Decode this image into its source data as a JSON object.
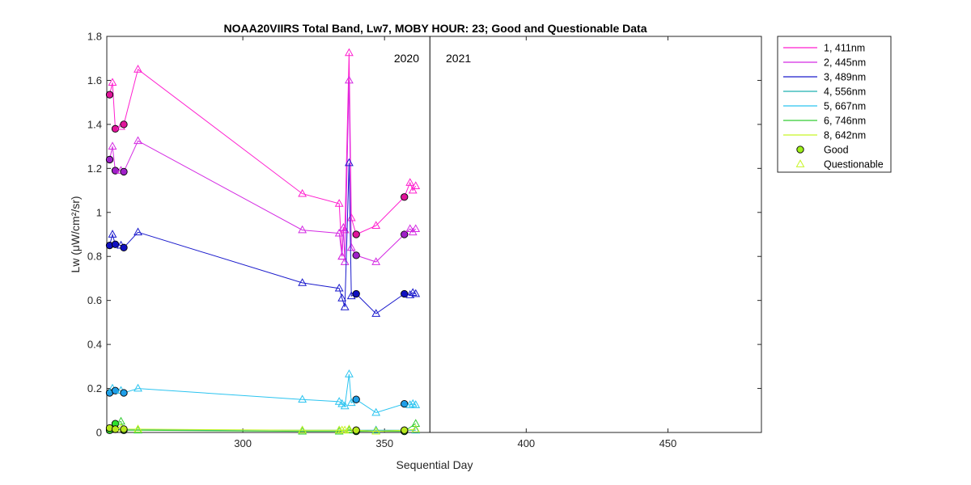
{
  "chart_data": {
    "type": "line",
    "title": "NOAA20VIIRS Total Band,  Lw7, MOBY HOUR: 23;  Good and Questionable Data",
    "xlabel": "Sequential Day",
    "ylabel": "Lw (μW/cm²/sr)",
    "xlim": [
      252,
      483
    ],
    "ylim": [
      0,
      1.8
    ],
    "xticks": [
      300,
      350,
      400,
      450
    ],
    "yticks": [
      0,
      0.2,
      0.4,
      0.6,
      0.8,
      1.0,
      1.2,
      1.4,
      1.6,
      1.8
    ],
    "ytick_labels": [
      "0",
      "0.2",
      "0.4",
      "0.6",
      "0.8",
      "1",
      "1.2",
      "1.4",
      "1.6",
      "1.8"
    ],
    "grid": false,
    "legend_position": "outside-right",
    "year_divider": 366,
    "year_labels": [
      "2020",
      "2021"
    ],
    "legend_markers": [
      {
        "label": "Good",
        "marker": "circle",
        "color": "#9ef01a"
      },
      {
        "label": "Questionable",
        "marker": "triangle",
        "color": "#c8f526"
      }
    ],
    "series": [
      {
        "name": "1, 411nm",
        "color": "#ff1fcf",
        "marker_color": "#e0149a",
        "points": [
          [
            253,
            1.535,
            "g"
          ],
          [
            254,
            1.59,
            "q"
          ],
          [
            255,
            1.38,
            "g"
          ],
          [
            257,
            1.39,
            "q"
          ],
          [
            258,
            1.4,
            "g"
          ],
          [
            263,
            1.65,
            "q"
          ],
          [
            321,
            1.085,
            "q"
          ],
          [
            334,
            1.04,
            "q"
          ],
          [
            335,
            0.8,
            "q"
          ],
          [
            335.5,
            0.93,
            "q"
          ],
          [
            336,
            0.92,
            "q"
          ],
          [
            337.5,
            1.725,
            "q"
          ],
          [
            338.3,
            0.975,
            "q"
          ],
          [
            340,
            0.9,
            "g"
          ],
          [
            347,
            0.94,
            "q"
          ],
          [
            357,
            1.07,
            "g"
          ],
          [
            359,
            1.135,
            "q"
          ],
          [
            360,
            1.1,
            "q"
          ],
          [
            361,
            1.12,
            "q"
          ]
        ]
      },
      {
        "name": "2, 445nm",
        "color": "#d42be3",
        "marker_color": "#a020c8",
        "points": [
          [
            253,
            1.24,
            "g"
          ],
          [
            254,
            1.3,
            "q"
          ],
          [
            255,
            1.19,
            "g"
          ],
          [
            257,
            1.19,
            "q"
          ],
          [
            258,
            1.185,
            "g"
          ],
          [
            263,
            1.325,
            "q"
          ],
          [
            321,
            0.92,
            "q"
          ],
          [
            334,
            0.905,
            "q"
          ],
          [
            335,
            0.8,
            "q"
          ],
          [
            335.5,
            0.93,
            "q"
          ],
          [
            336,
            0.775,
            "q"
          ],
          [
            337.5,
            1.6,
            "q"
          ],
          [
            338.3,
            0.84,
            "q"
          ],
          [
            340,
            0.805,
            "g"
          ],
          [
            347,
            0.775,
            "q"
          ],
          [
            357,
            0.9,
            "g"
          ],
          [
            359,
            0.925,
            "q"
          ],
          [
            360,
            0.91,
            "q"
          ],
          [
            361,
            0.925,
            "q"
          ]
        ]
      },
      {
        "name": "3, 489nm",
        "color": "#1a1acc",
        "marker_color": "#1010c0",
        "points": [
          [
            253,
            0.85,
            "g"
          ],
          [
            254,
            0.9,
            "q"
          ],
          [
            255,
            0.855,
            "g"
          ],
          [
            257,
            0.85,
            "q"
          ],
          [
            258,
            0.84,
            "g"
          ],
          [
            263,
            0.91,
            "q"
          ],
          [
            321,
            0.68,
            "q"
          ],
          [
            334,
            0.655,
            "q"
          ],
          [
            335,
            0.61,
            "q"
          ],
          [
            336,
            0.57,
            "q"
          ],
          [
            337.5,
            1.225,
            "q"
          ],
          [
            338.3,
            0.62,
            "q"
          ],
          [
            340,
            0.63,
            "g"
          ],
          [
            347,
            0.54,
            "q"
          ],
          [
            357,
            0.63,
            "g"
          ],
          [
            359,
            0.625,
            "q"
          ],
          [
            360,
            0.635,
            "q"
          ],
          [
            361,
            0.63,
            "q"
          ]
        ]
      },
      {
        "name": "4, 556nm",
        "color": "#1fb0b0",
        "marker_color": "#1aa0a0",
        "points": [
          [
            253,
            0.015,
            "g"
          ],
          [
            255,
            0.015,
            "g"
          ],
          [
            258,
            0.012,
            "g"
          ],
          [
            263,
            0.012,
            "q"
          ],
          [
            321,
            0.01,
            "q"
          ],
          [
            334,
            0.01,
            "q"
          ],
          [
            337.5,
            0.012,
            "q"
          ],
          [
            340,
            0.01,
            "g"
          ],
          [
            347,
            0.01,
            "q"
          ],
          [
            357,
            0.01,
            "g"
          ],
          [
            361,
            0.01,
            "q"
          ]
        ]
      },
      {
        "name": "5, 667nm",
        "color": "#2bc4f0",
        "marker_color": "#1e9ee8",
        "points": [
          [
            253,
            0.18,
            "g"
          ],
          [
            254,
            0.2,
            "q"
          ],
          [
            255,
            0.19,
            "g"
          ],
          [
            257,
            0.19,
            "q"
          ],
          [
            258,
            0.18,
            "g"
          ],
          [
            263,
            0.2,
            "q"
          ],
          [
            321,
            0.15,
            "q"
          ],
          [
            334,
            0.14,
            "q"
          ],
          [
            335,
            0.13,
            "q"
          ],
          [
            336,
            0.12,
            "q"
          ],
          [
            337.5,
            0.265,
            "q"
          ],
          [
            338.3,
            0.135,
            "q"
          ],
          [
            340,
            0.15,
            "g"
          ],
          [
            347,
            0.09,
            "q"
          ],
          [
            357,
            0.13,
            "g"
          ],
          [
            359,
            0.125,
            "q"
          ],
          [
            360,
            0.13,
            "q"
          ],
          [
            361,
            0.125,
            "q"
          ]
        ]
      },
      {
        "name": "6, 746nm",
        "color": "#33cc33",
        "marker_color": "#2ee22e",
        "points": [
          [
            253,
            0.01,
            "g"
          ],
          [
            255,
            0.04,
            "g"
          ],
          [
            257,
            0.05,
            "q"
          ],
          [
            258,
            0.01,
            "g"
          ],
          [
            263,
            0.01,
            "q"
          ],
          [
            321,
            0.005,
            "q"
          ],
          [
            334,
            0.005,
            "q"
          ],
          [
            337.5,
            0.01,
            "q"
          ],
          [
            340,
            0.005,
            "g"
          ],
          [
            347,
            0.005,
            "q"
          ],
          [
            357,
            0.005,
            "g"
          ],
          [
            361,
            0.04,
            "q"
          ]
        ]
      },
      {
        "name": "8, 642nm",
        "color": "#c8f526",
        "marker_color": "#b8e81e",
        "points": [
          [
            253,
            0.02,
            "g"
          ],
          [
            255,
            0.015,
            "g"
          ],
          [
            257,
            0.02,
            "q"
          ],
          [
            258,
            0.015,
            "g"
          ],
          [
            263,
            0.015,
            "q"
          ],
          [
            321,
            0.01,
            "q"
          ],
          [
            334,
            0.01,
            "q"
          ],
          [
            335,
            0.01,
            "q"
          ],
          [
            336,
            0.01,
            "q"
          ],
          [
            337.5,
            0.015,
            "q"
          ],
          [
            340,
            0.01,
            "g"
          ],
          [
            347,
            0.005,
            "q"
          ],
          [
            357,
            0.01,
            "g"
          ],
          [
            361,
            0.015,
            "q"
          ]
        ]
      }
    ]
  }
}
